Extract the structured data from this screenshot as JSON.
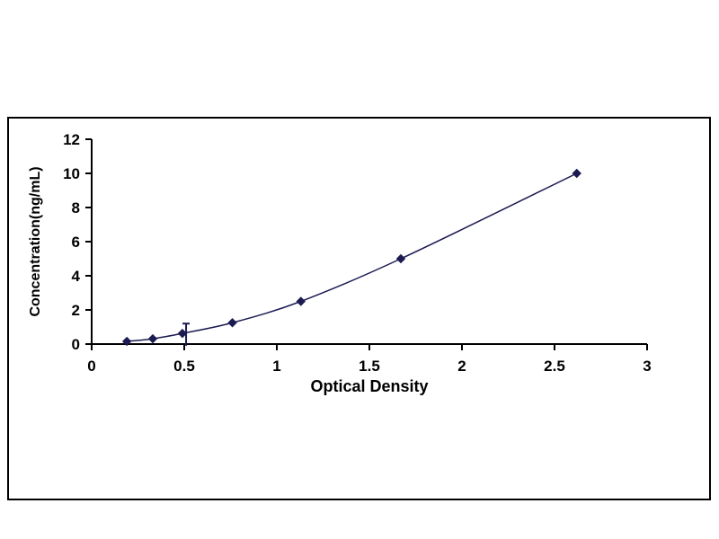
{
  "figure": {
    "background_color": "#ffffff",
    "frame_border_color": "#000000"
  },
  "chart_data": {
    "type": "line",
    "title": "",
    "xlabel": "Optical Density",
    "ylabel": "Concentration(ng/mL)",
    "x": [
      0.19,
      0.33,
      0.49,
      0.76,
      1.13,
      1.67,
      2.62
    ],
    "y": [
      0.156,
      0.312,
      0.625,
      1.25,
      2.5,
      5,
      10
    ],
    "xlim": [
      0,
      3
    ],
    "ylim": [
      0,
      12
    ],
    "xticks": [
      0,
      0.5,
      1,
      1.5,
      2,
      2.5,
      3
    ],
    "xtick_labels": [
      "0",
      "0.5",
      "1",
      "1.5",
      "2",
      "2.5",
      "3"
    ],
    "yticks": [
      0,
      2,
      4,
      6,
      8,
      10,
      12
    ],
    "ytick_labels": [
      "0",
      "2",
      "4",
      "6",
      "8",
      "10",
      "12"
    ],
    "grid": false,
    "legend": null,
    "line_color": "#1b1b52",
    "marker": "diamond",
    "marker_color": "#1b1b52",
    "error_bar": {
      "x": 0.51,
      "y_top": 1.2,
      "y_bottom": -0.1
    }
  }
}
